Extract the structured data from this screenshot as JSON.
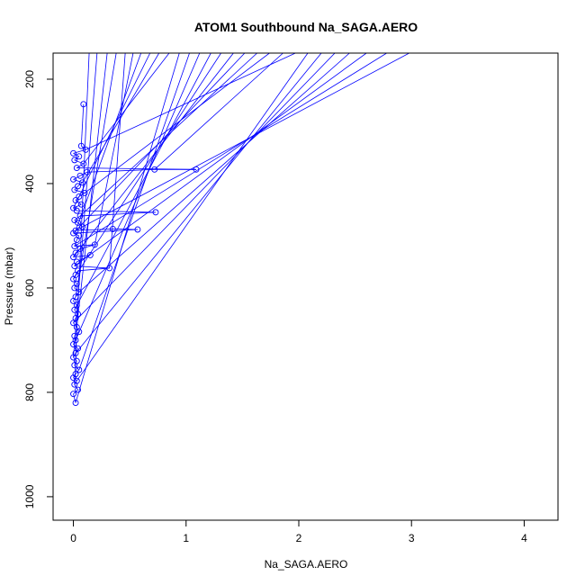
{
  "chart_data": {
    "type": "line",
    "title": "ATOM1 Southbound Na_SAGA.AERO",
    "xlabel": "Na_SAGA.AERO",
    "ylabel": "Pressure (mbar)",
    "xlim": [
      -0.18,
      4.3
    ],
    "ylim": [
      1045,
      150
    ],
    "y_reversed": true,
    "xticks": [
      0,
      1,
      2,
      3,
      4
    ],
    "yticks": [
      200,
      400,
      600,
      800,
      1000
    ],
    "grid": false,
    "legend": "none",
    "series_color": "#0000ff",
    "marker": "open-circle",
    "points": [
      [
        0.02,
        820
      ],
      [
        0.0,
        803
      ],
      [
        0.04,
        795
      ],
      [
        0.01,
        785
      ],
      [
        0.03,
        778
      ],
      [
        0.0,
        772
      ],
      [
        0.02,
        765
      ],
      [
        0.05,
        757
      ],
      [
        0.01,
        748
      ],
      [
        0.03,
        740
      ],
      [
        0.0,
        733
      ],
      [
        0.02,
        725
      ],
      [
        0.04,
        716
      ],
      [
        0.0,
        708
      ],
      [
        0.02,
        700
      ],
      [
        0.01,
        692
      ],
      [
        0.05,
        684
      ],
      [
        0.03,
        675
      ],
      [
        0.0,
        667
      ],
      [
        0.02,
        658
      ],
      [
        0.04,
        650
      ],
      [
        0.01,
        642
      ],
      [
        0.03,
        633
      ],
      [
        0.0,
        625
      ],
      [
        0.02,
        617
      ],
      [
        0.05,
        608
      ],
      [
        0.01,
        600
      ],
      [
        0.03,
        592
      ],
      [
        0.0,
        583
      ],
      [
        0.02,
        575
      ],
      [
        0.04,
        567
      ],
      [
        0.32,
        562
      ],
      [
        0.01,
        558
      ],
      [
        0.03,
        550
      ],
      [
        0.15,
        537
      ],
      [
        0.0,
        541
      ],
      [
        0.02,
        533
      ],
      [
        0.06,
        525
      ],
      [
        0.19,
        517
      ],
      [
        0.01,
        520
      ],
      [
        0.03,
        508
      ],
      [
        0.05,
        500
      ],
      [
        0.0,
        495
      ],
      [
        0.57,
        488
      ],
      [
        0.35,
        487
      ],
      [
        0.02,
        490
      ],
      [
        0.08,
        483
      ],
      [
        0.04,
        475
      ],
      [
        0.01,
        470
      ],
      [
        0.06,
        462
      ],
      [
        0.73,
        455
      ],
      [
        0.03,
        452
      ],
      [
        0.0,
        447
      ],
      [
        0.07,
        440
      ],
      [
        0.02,
        432
      ],
      [
        0.05,
        425
      ],
      [
        0.1,
        418
      ],
      [
        0.01,
        412
      ],
      [
        0.04,
        405
      ],
      [
        0.08,
        398
      ],
      [
        0.0,
        392
      ],
      [
        0.06,
        385
      ],
      [
        0.12,
        378
      ],
      [
        0.72,
        373
      ],
      [
        1.09,
        373
      ],
      [
        0.03,
        370
      ],
      [
        0.09,
        362
      ],
      [
        0.01,
        355
      ],
      [
        0.05,
        348
      ],
      [
        0.0,
        342
      ],
      [
        0.11,
        335
      ],
      [
        0.07,
        328
      ],
      [
        0.09,
        248
      ]
    ],
    "upper_endpoints": [
      [
        0.14,
        150
      ],
      [
        0.21,
        150
      ],
      [
        0.3,
        150
      ],
      [
        0.38,
        150
      ],
      [
        0.46,
        150
      ],
      [
        0.53,
        150
      ],
      [
        0.6,
        150
      ],
      [
        0.68,
        150
      ],
      [
        0.76,
        150
      ],
      [
        0.85,
        150
      ],
      [
        0.94,
        150
      ],
      [
        1.03,
        150
      ],
      [
        1.12,
        150
      ],
      [
        1.22,
        150
      ],
      [
        1.31,
        150
      ],
      [
        1.42,
        150
      ],
      [
        1.52,
        150
      ],
      [
        1.63,
        150
      ],
      [
        1.74,
        150
      ],
      [
        1.86,
        150
      ],
      [
        1.97,
        150
      ],
      [
        2.08,
        150
      ],
      [
        2.2,
        150
      ],
      [
        2.32,
        150
      ],
      [
        2.45,
        150
      ],
      [
        2.6,
        150
      ],
      [
        2.78,
        150
      ],
      [
        2.98,
        150
      ]
    ]
  }
}
